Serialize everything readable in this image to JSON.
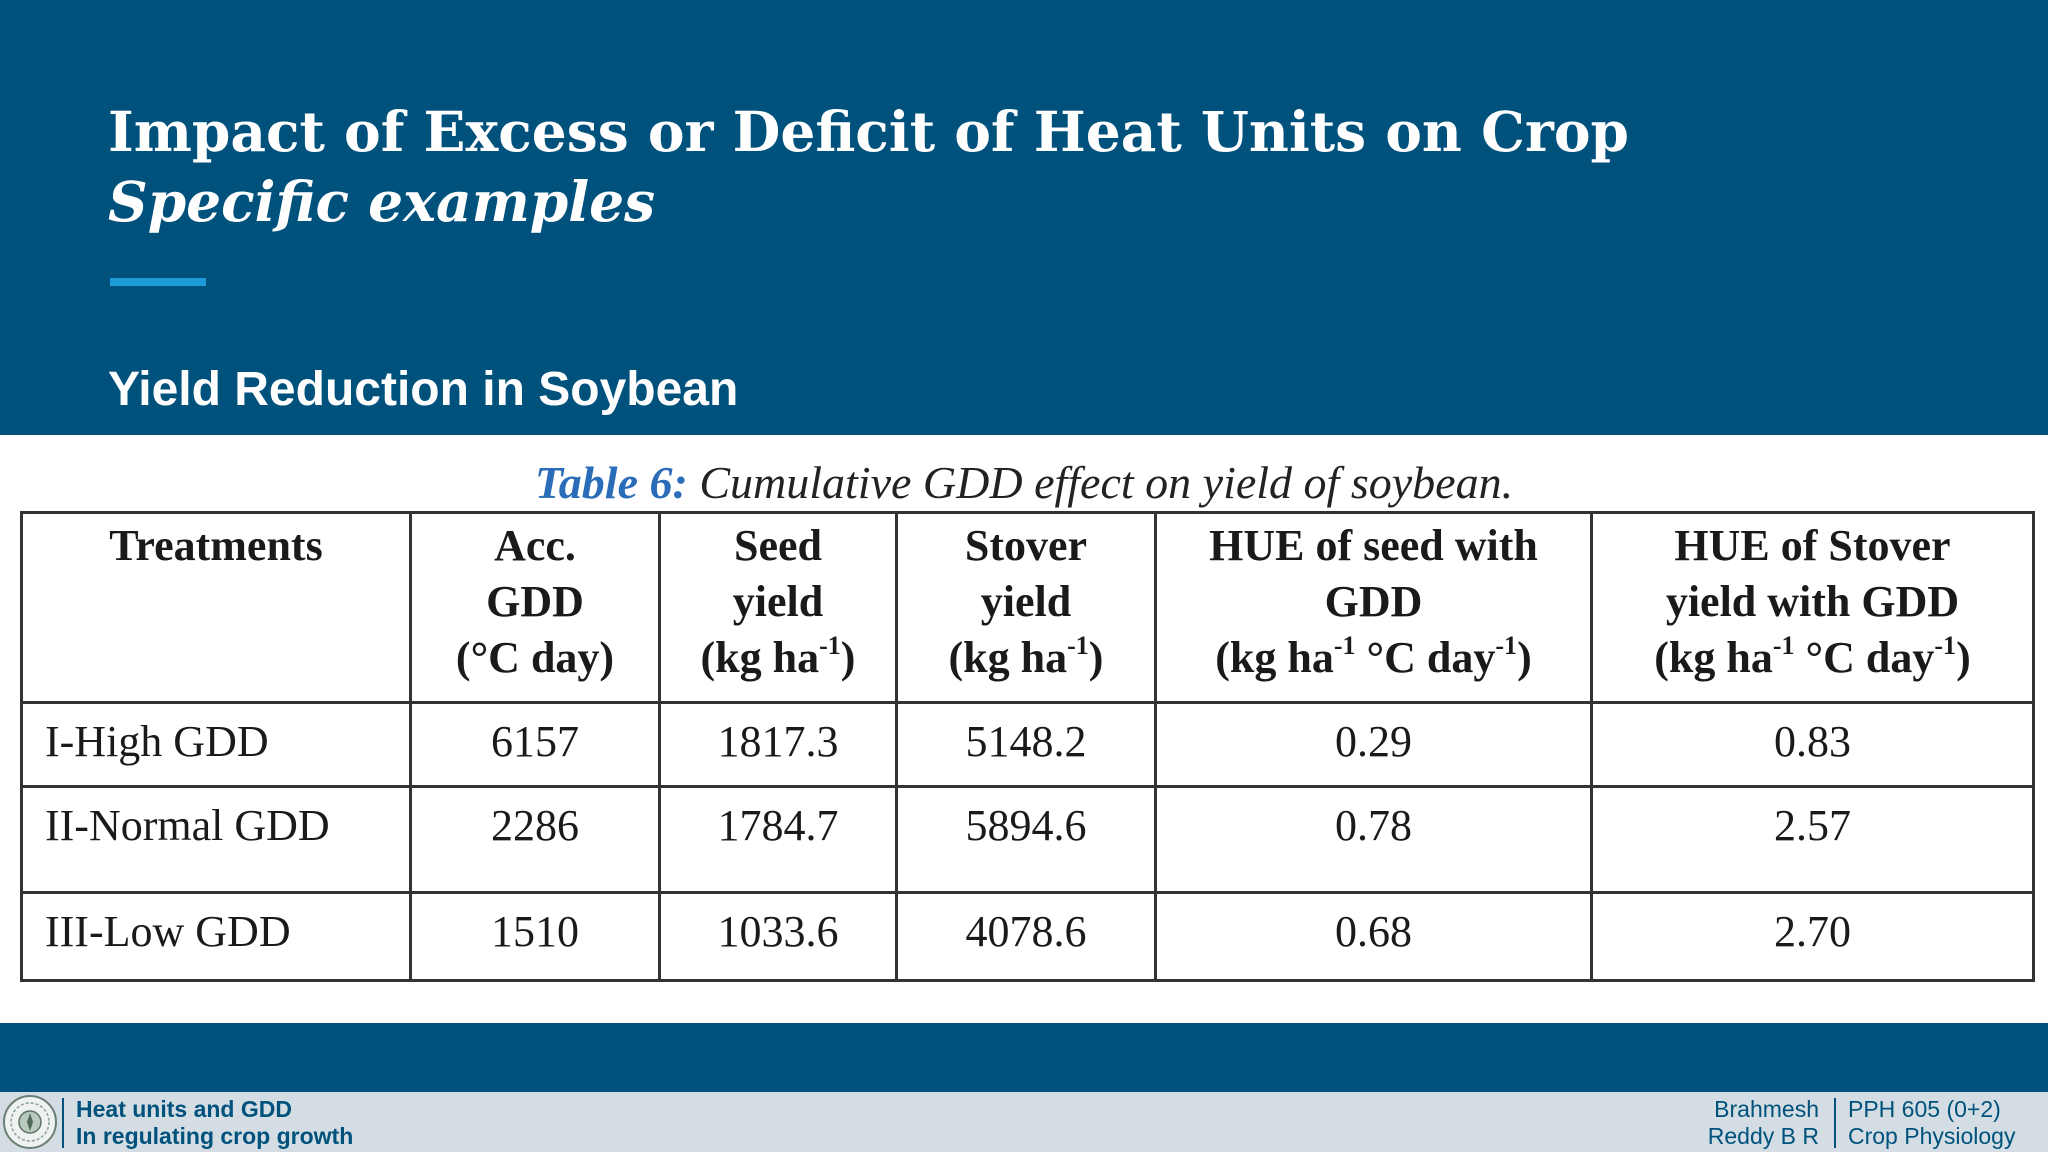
{
  "slide": {
    "title": "Impact of Excess or Deficit of Heat Units on Crop",
    "subtitle": "Specific examples",
    "section_heading": "Yield Reduction in Soybean"
  },
  "table": {
    "caption_label": "Table 6:",
    "caption_text": "Cumulative GDD effect on yield of soybean.",
    "headers": [
      {
        "lines": [
          "Treatments"
        ]
      },
      {
        "lines": [
          "Acc.",
          "GDD",
          "(°C day)"
        ]
      },
      {
        "lines": [
          "Seed",
          "yield",
          "(kg ha",
          "-1",
          ")"
        ]
      },
      {
        "lines": [
          "Stover",
          "yield",
          "(kg ha",
          "-1",
          ")"
        ]
      },
      {
        "lines": [
          "HUE of seed with",
          "GDD",
          "(kg ha",
          "-1",
          " °C day",
          "-1",
          ")"
        ]
      },
      {
        "lines": [
          "HUE of Stover",
          "yield with GDD",
          "(kg ha",
          "-1",
          " °C day",
          "-1",
          ")"
        ]
      }
    ],
    "rows": [
      {
        "treatment": "I-High GDD",
        "acc_gdd": "6157",
        "seed_yield": "1817.3",
        "stover_yield": "5148.2",
        "hue_seed": "0.29",
        "hue_stover": "0.83"
      },
      {
        "treatment": "II-Normal GDD",
        "acc_gdd": "2286",
        "seed_yield": "1784.7",
        "stover_yield": "5894.6",
        "hue_seed": "0.78",
        "hue_stover": "2.57"
      },
      {
        "treatment": "III-Low GDD",
        "acc_gdd": "1510",
        "seed_yield": "1033.6",
        "stover_yield": "4078.6",
        "hue_seed": "0.68",
        "hue_stover": "2.70"
      }
    ]
  },
  "footer": {
    "topic_line1": "Heat units and GDD",
    "topic_line2": "In regulating crop growth",
    "author_line1": "Brahmesh",
    "author_line2": "Reddy B R",
    "course_line1": "PPH 605 (0+2)",
    "course_line2": "Crop Physiology",
    "logo_icon": "university-seal-icon"
  },
  "colors": {
    "background": "#00527d",
    "accent": "#1d9bd6",
    "footer_bg": "#d3dde3",
    "caption_label": "#2a6cb8"
  }
}
